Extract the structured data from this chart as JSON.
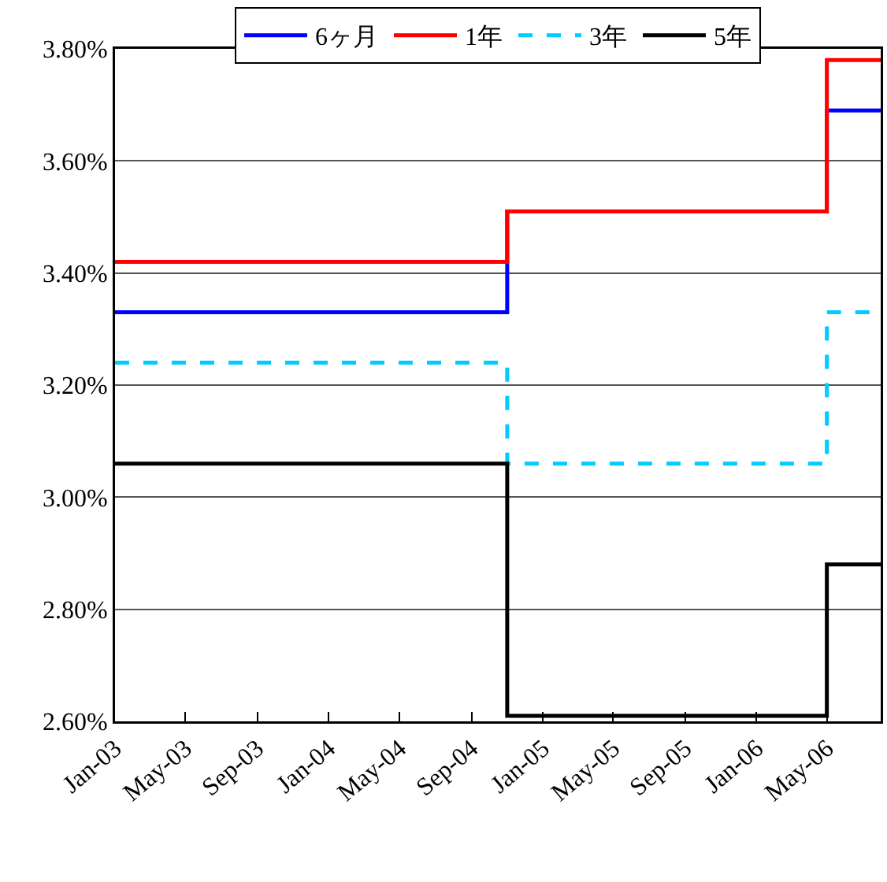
{
  "chart_data": {
    "type": "step",
    "x": [
      "2003-01",
      "2004-11",
      "2006-05",
      "2006-08"
    ],
    "series": [
      {
        "name": "6ヶ月",
        "color": "#0000ff",
        "values": [
          3.33,
          3.51,
          3.69,
          3.69
        ]
      },
      {
        "name": "1年",
        "color": "#ff0000",
        "values": [
          3.42,
          3.51,
          3.78,
          3.78
        ]
      },
      {
        "name": "3年",
        "color": "#00ccff",
        "line_style": "dashed",
        "values": [
          3.24,
          3.06,
          3.33,
          3.33
        ]
      },
      {
        "name": "5年",
        "color": "#000000",
        "values": [
          3.06,
          2.61,
          2.88,
          2.88
        ]
      }
    ],
    "xlim": [
      "2003-01",
      "2006-08"
    ],
    "xticks": [
      {
        "value": "2003-01",
        "label": "Jan-03"
      },
      {
        "value": "2003-05",
        "label": "May-03"
      },
      {
        "value": "2003-09",
        "label": "Sep-03"
      },
      {
        "value": "2004-01",
        "label": "Jan-04"
      },
      {
        "value": "2004-05",
        "label": "May-04"
      },
      {
        "value": "2004-09",
        "label": "Sep-04"
      },
      {
        "value": "2005-01",
        "label": "Jan-05"
      },
      {
        "value": "2005-05",
        "label": "May-05"
      },
      {
        "value": "2005-09",
        "label": "Sep-05"
      },
      {
        "value": "2006-01",
        "label": "Jan-06"
      },
      {
        "value": "2006-05",
        "label": "May-06"
      }
    ],
    "ylim": [
      2.6,
      3.8
    ],
    "yticks": [
      {
        "value": 2.6,
        "label": "2.60%"
      },
      {
        "value": 2.8,
        "label": "2.80%"
      },
      {
        "value": 3.0,
        "label": "3.00%"
      },
      {
        "value": 3.2,
        "label": "3.20%"
      },
      {
        "value": 3.4,
        "label": "3.40%"
      },
      {
        "value": 3.6,
        "label": "3.60%"
      },
      {
        "value": 3.8,
        "label": "3.80%"
      }
    ],
    "grid": "y",
    "legend": "top",
    "marker": "none",
    "line_style": "solid"
  }
}
